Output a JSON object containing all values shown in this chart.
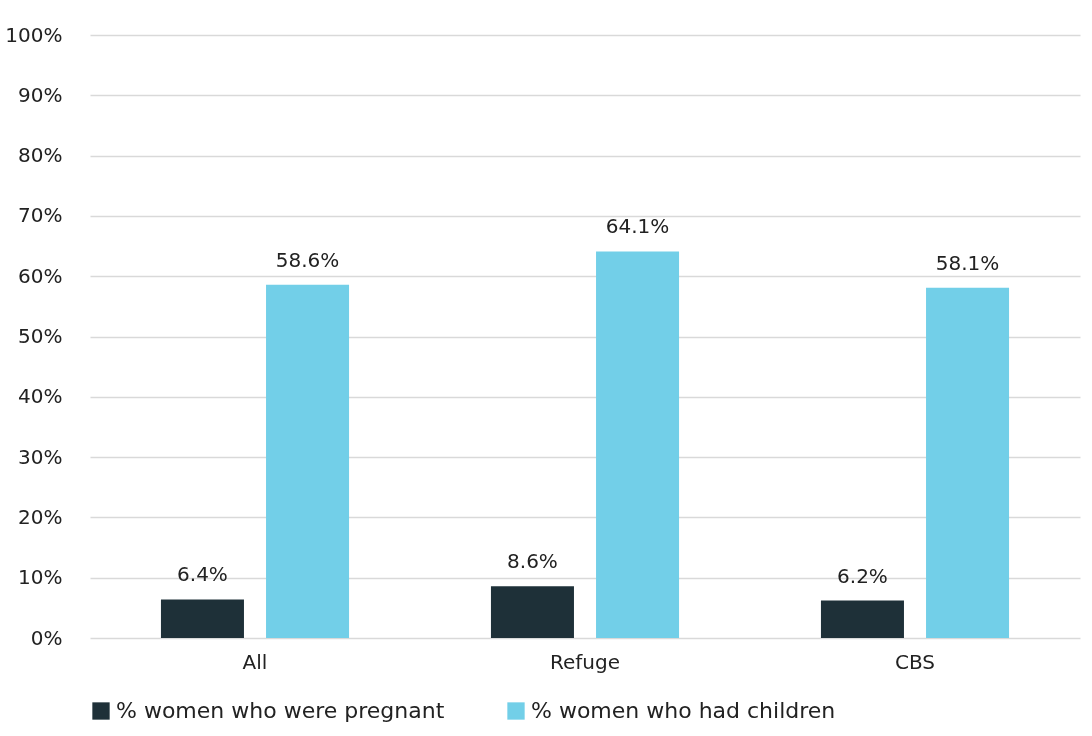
{
  "chart_data": {
    "type": "bar",
    "categories": [
      "All",
      "Refuge",
      "CBS"
    ],
    "series": [
      {
        "name": "% women who were pregnant",
        "color": "#1e3038",
        "values": [
          6.4,
          8.6,
          6.2
        ],
        "value_labels": [
          "6.4%",
          "8.6%",
          "6.2%"
        ]
      },
      {
        "name": "% women who had children",
        "color": "#72cfe8",
        "values": [
          58.6,
          64.1,
          58.1
        ],
        "value_labels": [
          "58.6%",
          "64.1%",
          "58.1%"
        ]
      }
    ],
    "ylim": [
      0,
      100
    ],
    "yticks": [
      {
        "value": 0,
        "label": "0%"
      },
      {
        "value": 10,
        "label": "10%"
      },
      {
        "value": 20,
        "label": "20%"
      },
      {
        "value": 30,
        "label": "30%"
      },
      {
        "value": 40,
        "label": "40%"
      },
      {
        "value": 50,
        "label": "50%"
      },
      {
        "value": 60,
        "label": "60%"
      },
      {
        "value": 70,
        "label": "70%"
      },
      {
        "value": 80,
        "label": "80%"
      },
      {
        "value": 90,
        "label": "90%"
      },
      {
        "value": 100,
        "label": "100%"
      }
    ],
    "grid": "y",
    "legend": "bottom"
  }
}
